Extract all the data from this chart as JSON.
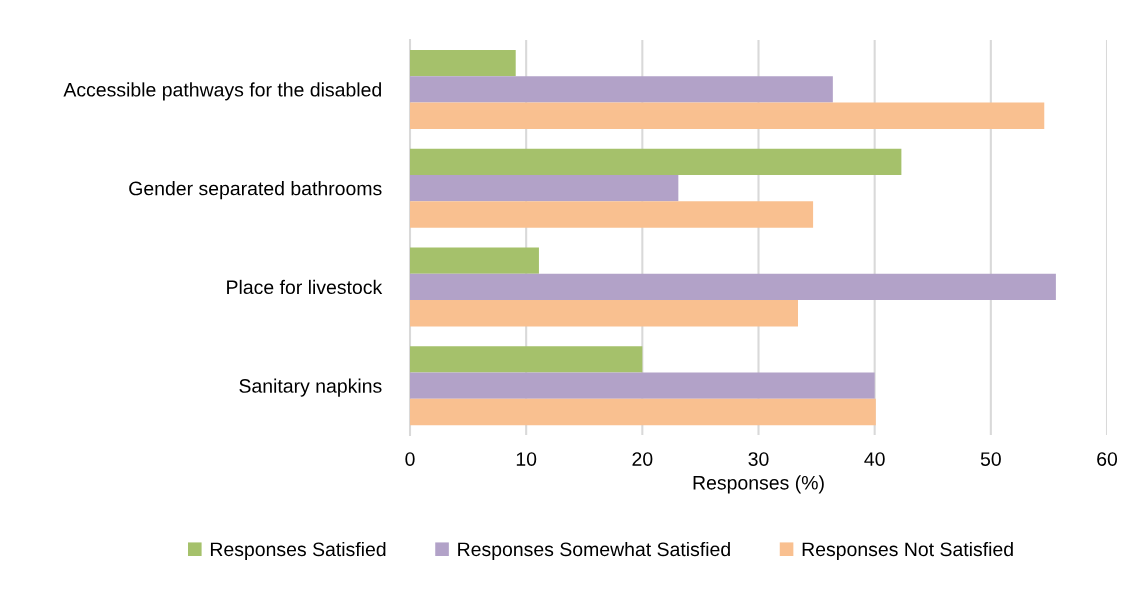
{
  "chart_data": {
    "type": "bar",
    "orientation": "horizontal",
    "xlabel": "Responses (%)",
    "categories": [
      "Accessible pathways for the disabled",
      "Gender separated bathrooms",
      "Place for livestock",
      "Sanitary napkins"
    ],
    "series": [
      {
        "name": "Responses Satisfied",
        "color": "#a5c16b",
        "values": [
          9.1,
          42.3,
          11.1,
          20.0
        ]
      },
      {
        "name": "Responses Somewhat Satisfied",
        "color": "#b2a2c8",
        "values": [
          36.4,
          23.1,
          55.6,
          40.0
        ]
      },
      {
        "name": "Responses Not Satisfied",
        "color": "#f9c090",
        "values": [
          54.6,
          34.7,
          33.4,
          40.1
        ]
      }
    ],
    "xlim": [
      0,
      60
    ],
    "xticks": [
      0,
      10,
      20,
      30,
      40,
      50,
      60
    ],
    "grid": "x",
    "legend": "bottom"
  }
}
